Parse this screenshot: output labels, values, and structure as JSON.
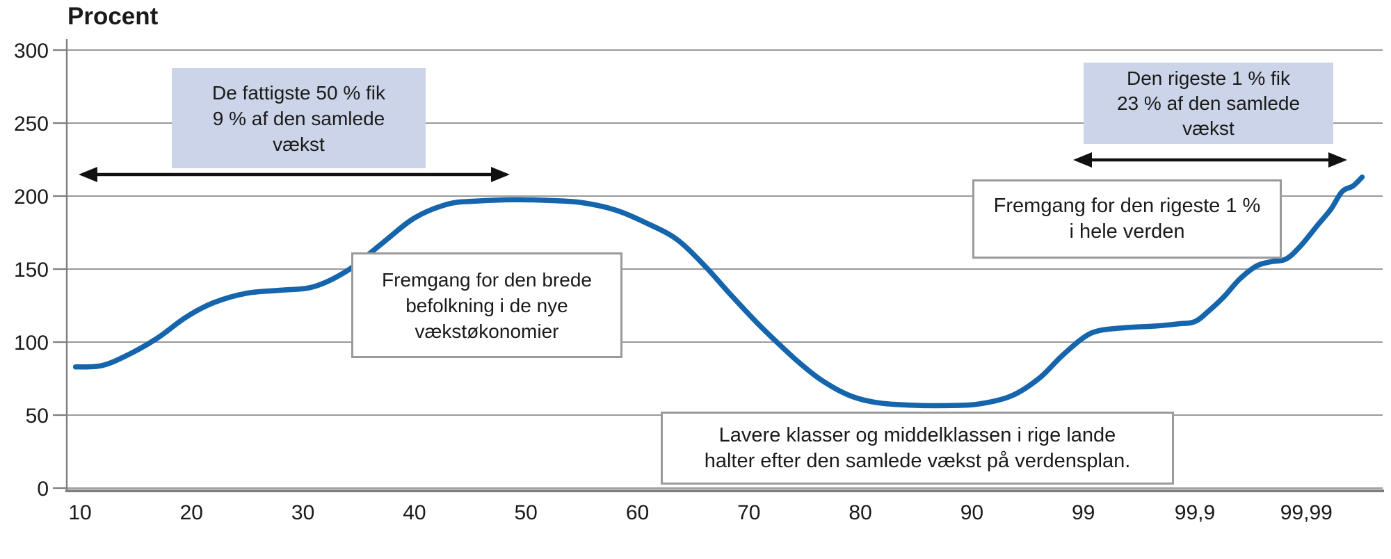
{
  "title": "Procent",
  "colors": {
    "curve": "#1565ad",
    "grid": "#9a9a9a",
    "axis": "#7e7e7e",
    "arrow": "#111111",
    "annotation_blue_bg": "#cbd4e8",
    "annotation_border": "#9a9a9a",
    "text": "#1a1a19",
    "background": "#ffffff"
  },
  "chart_data": {
    "type": "line",
    "title": "Procent",
    "ylabel": "Procent",
    "ylim": [
      0,
      300
    ],
    "yticks": [
      0,
      50,
      100,
      150,
      200,
      250,
      300
    ],
    "x_tick_labels": [
      "10",
      "20",
      "30",
      "40",
      "50",
      "60",
      "70",
      "80",
      "90",
      "99",
      "99,9",
      "99,99"
    ],
    "grid": "horizontal",
    "legend": "none",
    "curve_points_note": "t = position on the evenly spaced x-tick scale (0 = percentile 10, 11 = percentile 99,99), v = growth in percent",
    "curve_points": [
      [
        -0.04,
        83
      ],
      [
        0.2,
        84
      ],
      [
        0.45,
        92
      ],
      [
        0.7,
        103
      ],
      [
        0.95,
        117
      ],
      [
        1.2,
        127
      ],
      [
        1.5,
        133.5
      ],
      [
        1.8,
        135.5
      ],
      [
        2.1,
        138
      ],
      [
        2.4,
        149
      ],
      [
        2.7,
        167
      ],
      [
        3.0,
        185
      ],
      [
        3.3,
        194.5
      ],
      [
        3.55,
        196.5
      ],
      [
        3.9,
        197.5
      ],
      [
        4.2,
        197
      ],
      [
        4.5,
        195.5
      ],
      [
        4.8,
        190.5
      ],
      [
        5.08,
        181.5
      ],
      [
        5.35,
        170.5
      ],
      [
        5.6,
        152.5
      ],
      [
        5.83,
        133
      ],
      [
        6.05,
        115
      ],
      [
        6.25,
        100
      ],
      [
        6.45,
        86
      ],
      [
        6.65,
        74
      ],
      [
        6.9,
        63.5
      ],
      [
        7.15,
        58.5
      ],
      [
        7.45,
        56.8
      ],
      [
        7.75,
        56.5
      ],
      [
        8.05,
        57.5
      ],
      [
        8.35,
        63
      ],
      [
        8.6,
        75
      ],
      [
        8.8,
        90
      ],
      [
        9.0,
        103
      ],
      [
        9.15,
        108
      ],
      [
        9.4,
        110
      ],
      [
        9.65,
        111
      ],
      [
        9.85,
        112.5
      ],
      [
        10.0,
        114
      ],
      [
        10.12,
        121
      ],
      [
        10.26,
        131
      ],
      [
        10.4,
        143
      ],
      [
        10.55,
        152
      ],
      [
        10.68,
        155
      ],
      [
        10.82,
        157
      ],
      [
        10.95,
        166
      ],
      [
        11.1,
        180
      ],
      [
        11.22,
        191
      ],
      [
        11.32,
        203
      ],
      [
        11.42,
        207
      ],
      [
        11.5,
        213
      ]
    ]
  },
  "annotations": {
    "poor50": {
      "lines": [
        "De fattigste 50 % fik",
        "9 % af den samlede",
        "vækst"
      ]
    },
    "rich1": {
      "lines": [
        "Den rigeste 1 % fik",
        "23 % af den samlede",
        "vækst"
      ]
    },
    "emerging": {
      "lines": [
        "Fremgang for den brede",
        "befolkning i de nye",
        "vækstøkonomier"
      ]
    },
    "rich1_world": {
      "lines": [
        "Fremgang for den rigeste 1 %",
        "i hele verden"
      ]
    },
    "middle": {
      "lines": [
        "Lavere klasser og middelklassen i rige lande",
        "halter efter den samlede vækst på verdensplan."
      ]
    }
  }
}
